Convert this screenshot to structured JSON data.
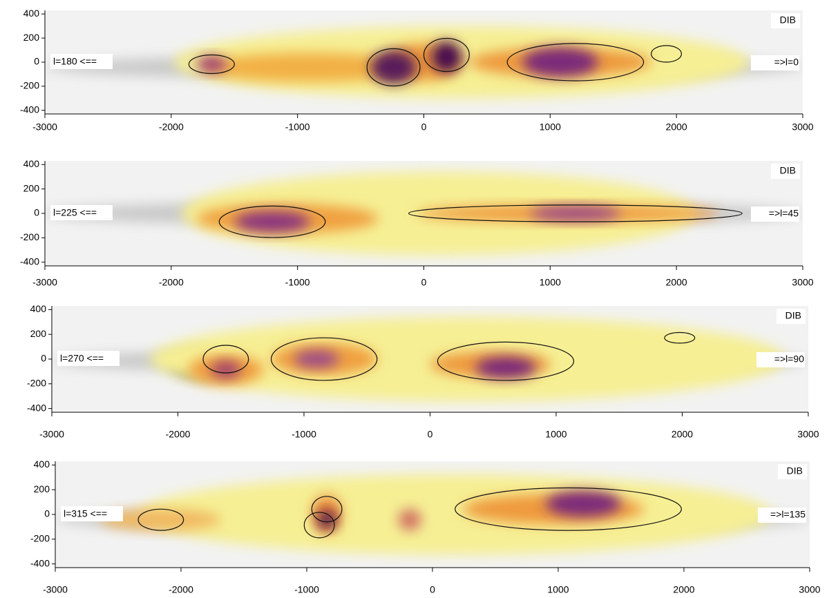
{
  "chart_data": [
    {
      "type": "map",
      "label": "DIB",
      "left_label": "l=180 <==",
      "right_label": "=>l=0",
      "xlim": [
        -3000,
        3000
      ],
      "ylim": [
        -430,
        430
      ],
      "xticks": [
        -3000,
        -2000,
        -1000,
        0,
        1000,
        2000,
        3000
      ],
      "yticks": [
        -400,
        -200,
        0,
        200,
        400
      ]
    },
    {
      "type": "map",
      "label": "DIB",
      "left_label": "l=225 <==",
      "right_label": "=>l=45",
      "xlim": [
        -3000,
        3000
      ],
      "ylim": [
        -430,
        430
      ],
      "xticks": [
        -3000,
        -2000,
        -1000,
        0,
        1000,
        2000,
        3000
      ],
      "yticks": [
        -400,
        -200,
        0,
        200,
        400
      ]
    },
    {
      "type": "map",
      "label": "DIB",
      "left_label": "l=270 <==",
      "right_label": "=>l=90",
      "xlim": [
        -3000,
        3000
      ],
      "ylim": [
        -430,
        430
      ],
      "xticks": [
        -3000,
        -2000,
        -1000,
        0,
        1000,
        2000,
        3000
      ],
      "yticks": [
        -400,
        -200,
        0,
        200,
        400
      ]
    },
    {
      "type": "map",
      "label": "DIB",
      "left_label": "l=315 <==",
      "right_label": "=>l=135",
      "xlim": [
        -3000,
        3000
      ],
      "ylim": [
        -430,
        430
      ],
      "xticks": [
        -3000,
        -2000,
        -1000,
        0,
        1000,
        2000,
        3000
      ],
      "yticks": [
        -400,
        -200,
        0,
        200,
        400
      ]
    }
  ]
}
